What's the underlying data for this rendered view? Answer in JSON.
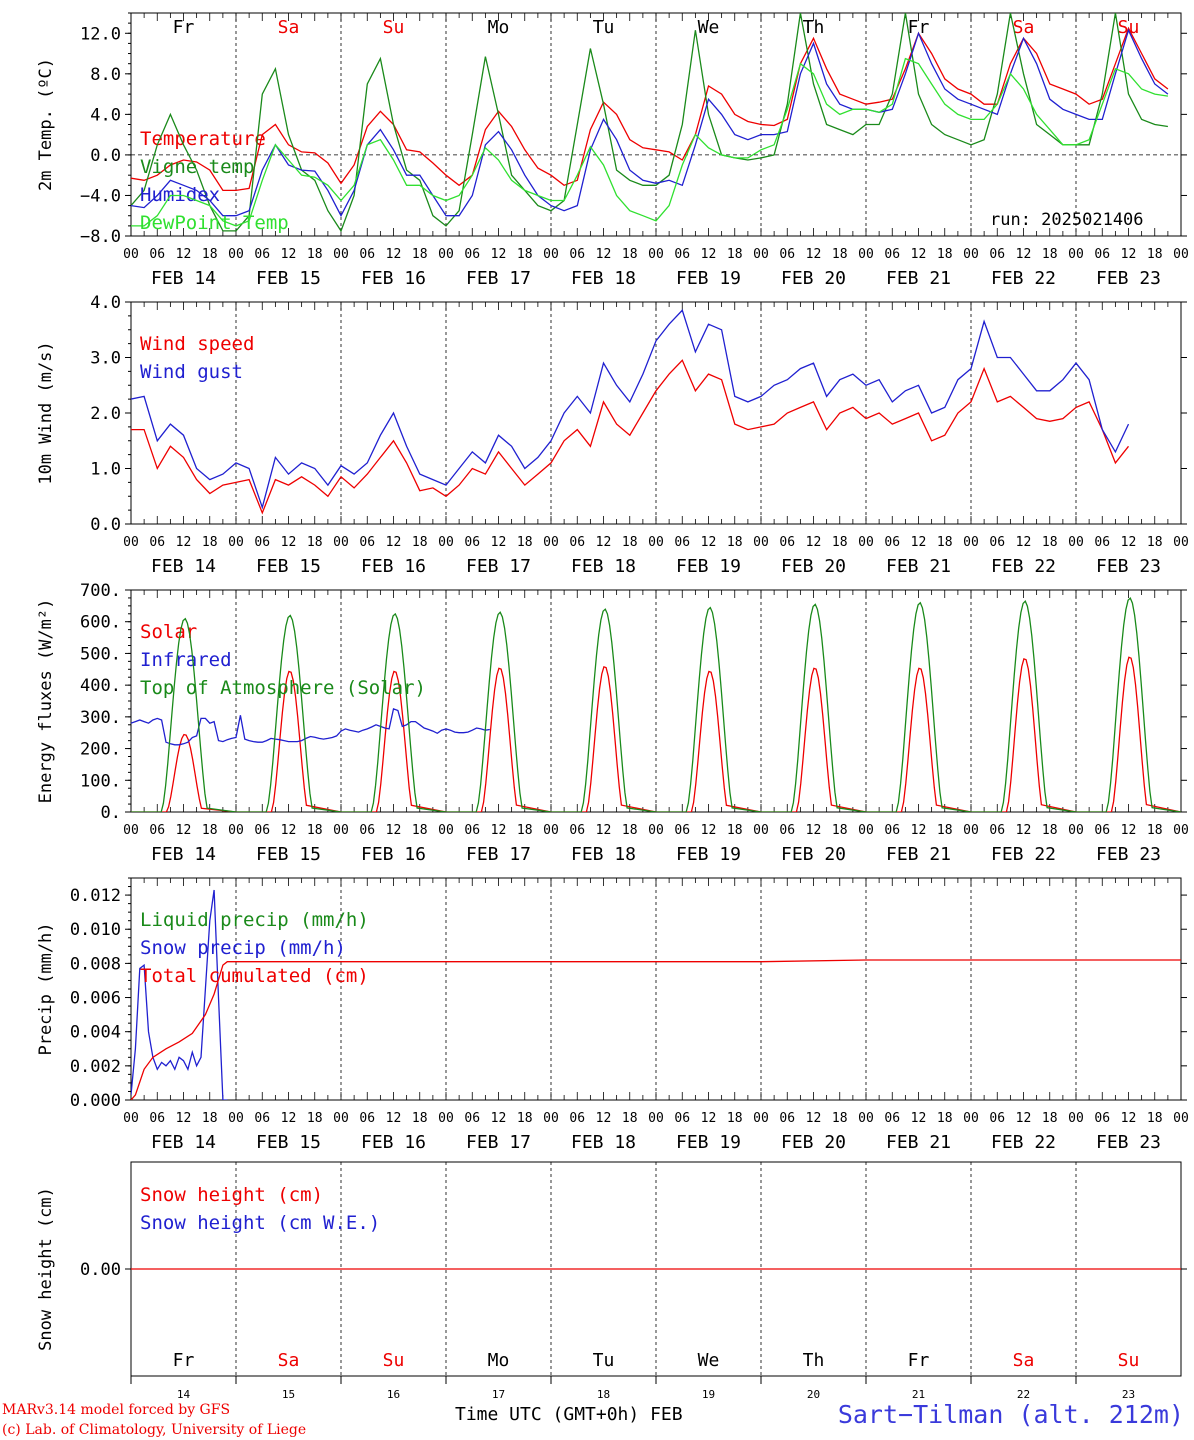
{
  "days": [
    "Fr",
    "Sa",
    "Su",
    "Mo",
    "Tu",
    "We",
    "Th",
    "Fr",
    "Sa",
    "Su"
  ],
  "day_colors": [
    "#000",
    "#e00",
    "#e00",
    "#000",
    "#000",
    "#000",
    "#000",
    "#000",
    "#e00",
    "#e00"
  ],
  "dates": [
    "FEB 14",
    "FEB 15",
    "FEB 16",
    "FEB 17",
    "FEB 18",
    "FEB 19",
    "FEB 20",
    "FEB 21",
    "FEB 22",
    "FEB 23"
  ],
  "day_numbers": [
    "14",
    "15",
    "16",
    "17",
    "18",
    "19",
    "20",
    "21",
    "22",
    "23"
  ],
  "hour_labels": [
    "00",
    "06",
    "12",
    "18"
  ],
  "hour_end": "00",
  "run": "run: 2025021406",
  "footer": {
    "left_line1": "MARv3.14 model forced by GFS",
    "left_line2": "(c) Lab. of Climatology, University of Liege",
    "center": "Time UTC (GMT+0h) FEB",
    "right": "Sart−Tilman (alt. 212m)"
  },
  "chart_data": [
    {
      "type": "line",
      "ylabel": "2m Temp. (ºC)",
      "ylim": [
        -8,
        14
      ],
      "yticks": [
        "12.0",
        "8.0",
        "4.0",
        "0.0",
        "−4.0",
        "−8.0"
      ],
      "ytick_values": [
        12,
        8,
        4,
        0,
        -4,
        -8
      ],
      "zero_line": true,
      "x_start": "2025-02-14 00UTC",
      "x_step_hours": 3,
      "series": [
        {
          "name": "Temperature",
          "color": "#e00",
          "values": [
            -2.3,
            -2.5,
            -2,
            -1,
            -0.5,
            -0.7,
            -1.5,
            -3.5,
            -3.5,
            -3.3,
            2,
            3,
            1,
            0.3,
            0.2,
            -0.8,
            -2.8,
            -1,
            2.8,
            4.3,
            3,
            0.5,
            0.3,
            -0.8,
            -2,
            -3,
            -2,
            2.5,
            4.3,
            2.8,
            0.5,
            -1.3,
            -2,
            -3,
            -2.5,
            2.5,
            5.2,
            4,
            1.5,
            0.7,
            0.5,
            0.3,
            -0.5,
            2,
            6.8,
            6,
            4,
            3.3,
            3,
            2.9,
            3.5,
            9,
            11.5,
            8.5,
            6,
            5.5,
            5,
            5.2,
            5.5,
            8.5,
            12,
            10,
            7.5,
            6.5,
            6,
            5,
            5,
            9,
            11.5,
            10,
            7,
            6.5,
            6,
            5,
            5.5,
            9,
            12.5,
            10,
            7.5,
            6.5
          ]
        },
        {
          "name": "Vigne temp",
          "color": "#1a8a1a",
          "values": [
            -5,
            -3.5,
            1,
            4,
            1,
            -1.5,
            -5,
            -7.5,
            -7.5,
            -6,
            6,
            8.5,
            2,
            -1.5,
            -2.5,
            -5.5,
            -7.5,
            -4,
            7,
            9.5,
            3,
            -1.5,
            -2.5,
            -6,
            -7,
            -5.5,
            2,
            9.7,
            4,
            -2,
            -3.5,
            -5,
            -5.5,
            -4.5,
            3,
            10.5,
            5,
            -1.5,
            -2.5,
            -3,
            -3,
            -2,
            3,
            12.3,
            4,
            0,
            -0.3,
            -0.5,
            -0.3,
            0,
            5,
            14,
            7,
            3,
            2.5,
            2,
            3,
            3,
            6,
            14,
            6,
            3,
            2,
            1.5,
            1,
            1.5,
            6,
            14,
            8,
            3,
            2,
            1,
            1,
            1,
            6,
            14,
            6,
            3.5,
            3,
            2.8
          ]
        },
        {
          "name": "Humidex",
          "color": "#2020d0",
          "values": [
            -5,
            -5.2,
            -4,
            -2.5,
            -3,
            -3.5,
            -4.5,
            -6,
            -6,
            -5.5,
            -1.5,
            1,
            -1,
            -1.5,
            -1.6,
            -3.5,
            -6,
            -3.5,
            1,
            2.5,
            0.5,
            -2,
            -2,
            -4,
            -6,
            -6,
            -4,
            1,
            2.3,
            0.5,
            -2,
            -4,
            -5,
            -5.5,
            -5,
            0.5,
            3.5,
            1.5,
            -1.5,
            -2.5,
            -2.8,
            -2.5,
            -3,
            1,
            5.5,
            4,
            2,
            1.5,
            2,
            2,
            2.3,
            8,
            11,
            7,
            5,
            4.5,
            4.5,
            4.2,
            4.5,
            8,
            12,
            9,
            6.5,
            5.5,
            5,
            4.5,
            4,
            8,
            11.5,
            9,
            5.5,
            4.5,
            4,
            3.5,
            3.5,
            8,
            12.3,
            9.5,
            7,
            6
          ]
        },
        {
          "name": "DewPoint Temp",
          "color": "#30e030",
          "values": [
            -7,
            -7,
            -6,
            -4,
            -4,
            -4.5,
            -5,
            -6.5,
            -7,
            -6.5,
            -2.5,
            1,
            -0.5,
            -2,
            -2.2,
            -3,
            -4.5,
            -3,
            1,
            1.5,
            -0.5,
            -3,
            -3,
            -4,
            -4.5,
            -4,
            -2,
            0.7,
            -0.5,
            -2.5,
            -3.5,
            -4,
            -4.5,
            -4.5,
            -2,
            0.8,
            -1,
            -4,
            -5.5,
            -6,
            -6.5,
            -5,
            -1,
            2,
            0.7,
            0,
            -0.3,
            -0.3,
            0.5,
            1,
            4.5,
            9,
            8,
            5,
            4,
            4.5,
            4.5,
            4.2,
            5,
            9.5,
            9,
            7,
            5,
            4,
            3.5,
            3.5,
            5,
            8,
            6.5,
            4,
            2.5,
            1,
            1,
            1.5,
            5,
            8.5,
            8,
            6.5,
            6,
            5.8
          ]
        }
      ],
      "legend_placement": "left"
    },
    {
      "type": "line",
      "ylabel": "10m Wind (m/s)",
      "ylim": [
        0,
        4
      ],
      "yticks": [
        "4.0",
        "3.0",
        "2.0",
        "1.0",
        "0.0"
      ],
      "ytick_values": [
        4,
        3,
        2,
        1,
        0
      ],
      "x_step_hours": 3,
      "series": [
        {
          "name": "Wind speed",
          "color": "#e00",
          "values": [
            1.7,
            1.7,
            1,
            1.4,
            1.2,
            0.8,
            0.55,
            0.7,
            0.75,
            0.8,
            0.2,
            0.8,
            0.7,
            0.85,
            0.7,
            0.5,
            0.85,
            0.65,
            0.9,
            1.2,
            1.5,
            1.1,
            0.6,
            0.65,
            0.5,
            0.7,
            1,
            0.9,
            1.3,
            1.0,
            0.7,
            0.9,
            1.1,
            1.5,
            1.7,
            1.4,
            2.2,
            1.8,
            1.6,
            2.0,
            2.4,
            2.7,
            2.95,
            2.4,
            2.7,
            2.6,
            1.8,
            1.7,
            1.75,
            1.8,
            2.0,
            2.1,
            2.2,
            1.7,
            2.0,
            2.1,
            1.9,
            2.0,
            1.8,
            1.9,
            2.0,
            1.5,
            1.6,
            2.0,
            2.2,
            2.8,
            2.2,
            2.3,
            2.1,
            1.9,
            1.85,
            1.9,
            2.1,
            2.2,
            1.7,
            1.1,
            1.4
          ]
        },
        {
          "name": "Wind gust",
          "color": "#2020d0",
          "values": [
            2.25,
            2.3,
            1.5,
            1.8,
            1.6,
            1.0,
            0.8,
            0.9,
            1.1,
            1.0,
            0.3,
            1.2,
            0.9,
            1.1,
            1.0,
            0.7,
            1.05,
            0.9,
            1.1,
            1.6,
            2.0,
            1.4,
            0.9,
            0.8,
            0.7,
            1.0,
            1.3,
            1.1,
            1.6,
            1.4,
            1.0,
            1.2,
            1.5,
            2.0,
            2.3,
            2.0,
            2.9,
            2.5,
            2.2,
            2.7,
            3.3,
            3.6,
            3.85,
            3.1,
            3.6,
            3.5,
            2.3,
            2.2,
            2.3,
            2.5,
            2.6,
            2.8,
            2.9,
            2.3,
            2.6,
            2.7,
            2.5,
            2.6,
            2.2,
            2.4,
            2.5,
            2.0,
            2.1,
            2.6,
            2.8,
            3.65,
            3.0,
            3.0,
            2.7,
            2.4,
            2.4,
            2.6,
            2.9,
            2.6,
            1.7,
            1.3,
            1.8
          ]
        }
      ],
      "legend_placement": "top-left"
    },
    {
      "type": "line",
      "ylabel": "Energy fluxes (W/m²)",
      "ylim": [
        0,
        700
      ],
      "yticks": [
        "700.",
        "600.",
        "500.",
        "400.",
        "300.",
        "200.",
        "100.",
        "0."
      ],
      "ytick_values": [
        700,
        600,
        500,
        400,
        300,
        200,
        100,
        0
      ],
      "x_step_hours": 1,
      "series": [
        {
          "name": "Solar",
          "color": "#e00",
          "peaks": [
            245,
            445,
            445,
            455,
            460,
            445,
            455,
            455,
            485,
            490
          ]
        },
        {
          "name": "Infrared",
          "color": "#2020d0",
          "values": [
            280,
            285,
            290,
            285,
            280,
            290,
            295,
            290,
            220,
            215,
            212,
            212,
            215,
            220,
            235,
            240,
            295,
            295,
            280,
            285,
            225,
            222,
            228,
            232,
            235,
            305,
            230,
            225,
            222,
            220,
            220,
            225,
            232,
            230,
            228,
            225,
            222,
            222,
            222,
            225,
            232,
            238,
            236,
            232,
            230,
            232,
            235,
            240,
            255,
            262,
            258,
            255,
            252,
            258,
            262,
            268,
            275,
            270,
            265,
            262,
            325,
            320,
            270,
            275,
            285,
            285,
            275,
            265,
            260,
            255,
            248,
            258,
            262,
            258,
            252,
            250,
            250,
            252,
            258,
            265,
            262,
            258,
            260
          ]
        },
        {
          "name": "Top of Atmosphere (Solar)",
          "color": "#1a8a1a",
          "peaks": [
            610,
            620,
            625,
            630,
            640,
            645,
            655,
            660,
            665,
            675
          ]
        }
      ],
      "legend_placement": "top-left"
    },
    {
      "type": "line",
      "ylabel": "Precip (mm/h)",
      "ylim": [
        0,
        0.013
      ],
      "yticks": [
        "0.012",
        "0.010",
        "0.008",
        "0.006",
        "0.004",
        "0.002",
        "0.000"
      ],
      "ytick_values": [
        0.012,
        0.01,
        0.008,
        0.006,
        0.004,
        0.002,
        0
      ],
      "x_step_hours": 1,
      "series": [
        {
          "name": "Liquid precip (mm/h)",
          "color": "#1a8a1a",
          "values": []
        },
        {
          "name": "Snow precip (mm/h)",
          "color": "#2020d0",
          "points": [
            [
              0,
              0.0003
            ],
            [
              1,
              0.003
            ],
            [
              2,
              0.0077
            ],
            [
              3,
              0.0079
            ],
            [
              4,
              0.004
            ],
            [
              5,
              0.0025
            ],
            [
              6,
              0.0018
            ],
            [
              7,
              0.0022
            ],
            [
              8,
              0.002
            ],
            [
              9,
              0.0023
            ],
            [
              10,
              0.0018
            ],
            [
              11,
              0.0025
            ],
            [
              12,
              0.0023
            ],
            [
              13,
              0.0018
            ],
            [
              14,
              0.0028
            ],
            [
              15,
              0.002
            ],
            [
              16,
              0.0025
            ],
            [
              17,
              0.0065
            ],
            [
              18,
              0.0105
            ],
            [
              19,
              0.0123
            ],
            [
              20,
              0.006
            ],
            [
              21,
              0.0
            ],
            [
              22,
              0.0
            ]
          ]
        },
        {
          "name": "Total cumulated (cm)",
          "color": "#e00",
          "points": [
            [
              0,
              0.0
            ],
            [
              1,
              0.0003
            ],
            [
              3,
              0.0018
            ],
            [
              5,
              0.0025
            ],
            [
              8,
              0.003
            ],
            [
              11,
              0.0034
            ],
            [
              14,
              0.0039
            ],
            [
              17,
              0.005
            ],
            [
              19,
              0.0062
            ],
            [
              21,
              0.0079
            ],
            [
              22,
              0.0081
            ],
            [
              144,
              0.0081
            ],
            [
              168,
              0.0082
            ],
            [
              240,
              0.0082
            ]
          ]
        }
      ],
      "legend_placement": "top-left"
    },
    {
      "type": "line",
      "ylabel": "Snow height (cm)",
      "yticks": [
        "0.00"
      ],
      "ytick_values": [
        0
      ],
      "series": [
        {
          "name": "Snow height (cm)",
          "color": "#e00",
          "values": [
            0,
            0
          ]
        },
        {
          "name": "Snow height (cm W.E.)",
          "color": "#2020d0",
          "values": []
        }
      ],
      "legend_placement": "top-left"
    }
  ]
}
